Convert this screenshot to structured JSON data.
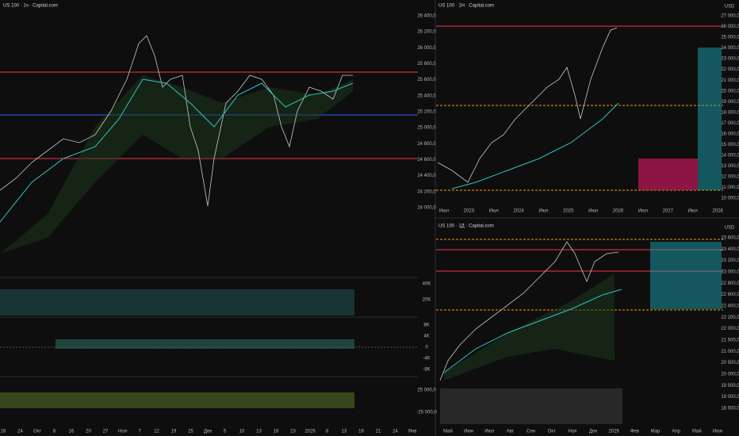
{
  "panels": [
    {
      "title": "US 100 · 1ч · Capital.com",
      "price_labels": [
        "26 400,0",
        "26 200,0",
        "26 000,0",
        "25 800,0",
        "25 600,0",
        "25 400,0",
        "25 200,0",
        "25 000,0",
        "24 800,0",
        "24 600,0",
        "24 400,0",
        "24 200,0",
        "24 000,0"
      ],
      "time_labels": [
        "16",
        "24",
        "Окт",
        "8",
        "16",
        "20",
        "27",
        "Ноя",
        "7",
        "12",
        "19",
        "25",
        "Дек",
        "5",
        "10",
        "13",
        "18",
        "23",
        "2026",
        "8",
        "13",
        "16",
        "21",
        "24",
        "Янв"
      ],
      "sub_labels": [
        "40K",
        "20K",
        "8K",
        "4K",
        "0",
        "-4K",
        "-8K",
        "25 000,0",
        "-25 000,0"
      ]
    },
    {
      "title": "US 100 · 1Н · Capital.com",
      "currency": "USD",
      "price_labels": [
        "27 000,0",
        "26 000,0",
        "25 000,0",
        "24 000,0",
        "23 000,0",
        "22 000,0",
        "21 000,0",
        "20 000,0",
        "19 000,0",
        "18 000,0",
        "17 000,0",
        "16 000,0",
        "15 000,0",
        "14 000,0",
        "13 000,0",
        "12 000,0",
        "11 000,0",
        "10 000,0"
      ],
      "time_labels": [
        "Июл",
        "2023",
        "Июл",
        "2024",
        "Июл",
        "2025",
        "Июл",
        "2026",
        "Июл",
        "2027",
        "Июл",
        "2028"
      ]
    },
    {
      "title": "US 100 · 1Д · Capital.com",
      "currency": "USD",
      "price_labels": [
        "23 600,0",
        "23 400,0",
        "23 200,0",
        "23 000,0",
        "22 800,0",
        "22 600,0",
        "22 400,0",
        "22 200,0",
        "22 000,0",
        "21 500,0",
        "21 000,0",
        "20 500,0",
        "20 000,0",
        "19 500,0",
        "19 000,0",
        "18 500,0"
      ],
      "time_labels": [
        "Май",
        "Июн",
        "Июл",
        "Авг",
        "Сен",
        "Окт",
        "Ноя",
        "Дек",
        "2026",
        "Фев",
        "Мар",
        "Апр",
        "Май",
        "Июн"
      ]
    }
  ]
}
